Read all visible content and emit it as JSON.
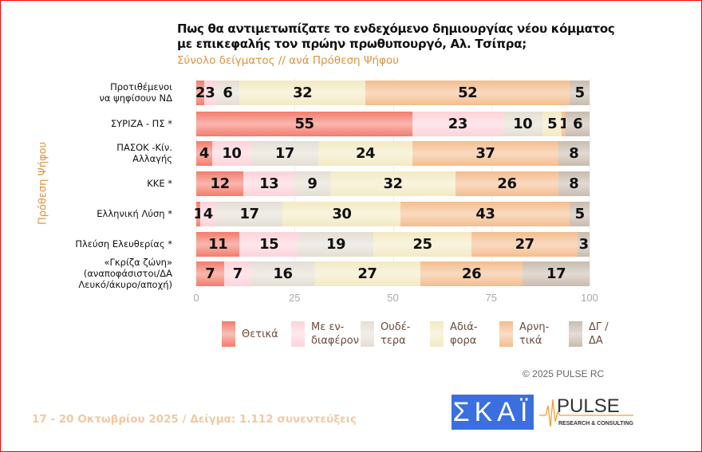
{
  "header": {
    "title_line1": "Πως θα αντιμετωπίζατε το ενδεχόμενο δημιουργίας νέου κόμματος",
    "title_line2": "με επικεφαλής τον πρώην πρωθυπουργό, Αλ. Τσίπρα;",
    "subtitle": "Σύνολο δείγματος // ανά Πρόθεση Ψήφου"
  },
  "chart_data": {
    "type": "bar",
    "orientation": "horizontal",
    "stacked": true,
    "title": "Πως θα αντιμετωπίζατε το ενδεχόμενο δημιουργίας νέου κόμματος με επικεφαλής τον πρώην πρωθυπουργό, Αλ. Τσίπρα;",
    "ylabel": "Πρόθεση Ψήφου",
    "xlim": [
      0,
      100
    ],
    "xticks": [
      "0",
      "25",
      "50",
      "75",
      "100"
    ],
    "categories": [
      [
        "Προτιθέμενοι",
        "να ψηφίσουν ΝΔ"
      ],
      [
        "ΣΥΡΙΖΑ - ΠΣ *"
      ],
      [
        "ΠΑΣΟΚ -Κίν.",
        "Αλλαγής"
      ],
      [
        "ΚΚΕ *"
      ],
      [
        "Ελληνική Λύση *"
      ],
      [
        "Πλεύση Ελευθερίας *"
      ],
      [
        "«Γκρίζα ζώνη»",
        "(αναποφάσιστοι/ΔΑ",
        "Λευκό/άκυρο/αποχή)"
      ]
    ],
    "series": [
      {
        "name": "Θετικά",
        "legend": [
          "Θετικά"
        ],
        "color": "#f47c6c",
        "values": [
          2,
          55,
          4,
          12,
          1,
          11,
          7
        ]
      },
      {
        "name": "Με ενδιαφέρον",
        "legend": [
          "Με εν-",
          "διαφέρον"
        ],
        "color": "#fcd3da",
        "values": [
          3,
          23,
          10,
          13,
          4,
          15,
          7
        ]
      },
      {
        "name": "Ουδέτερα",
        "legend": [
          "Ουδέ-",
          "τερα"
        ],
        "color": "#e4ded4",
        "values": [
          6,
          10,
          17,
          9,
          17,
          19,
          16
        ]
      },
      {
        "name": "Αδιάφορα",
        "legend": [
          "Αδιά-",
          "φορα"
        ],
        "color": "#f3eac3",
        "values": [
          32,
          5,
          24,
          32,
          30,
          25,
          27
        ]
      },
      {
        "name": "Αρνητικά",
        "legend": [
          "Αρνη-",
          "τικά"
        ],
        "color": "#f4bd8e",
        "values": [
          52,
          1,
          37,
          26,
          43,
          27,
          26
        ]
      },
      {
        "name": "ΔΓ / ΔΑ",
        "legend": [
          "ΔΓ /",
          "ΔΑ"
        ],
        "color": "#c9bcae",
        "values": [
          5,
          6,
          8,
          8,
          5,
          3,
          17
        ]
      }
    ],
    "legend_position": "bottom"
  },
  "footer": {
    "copyright": "©  2025  PULSE RC",
    "fieldwork": "17 - 20 Οκτωβρίου 2025  /  Δείγμα:  1.112 συνεντεύξεις",
    "logo_skai": "ΣΚΑΪ",
    "logo_pulse": "PULSE",
    "logo_pulse_sub": "RESEARCH & CONSULTING"
  }
}
